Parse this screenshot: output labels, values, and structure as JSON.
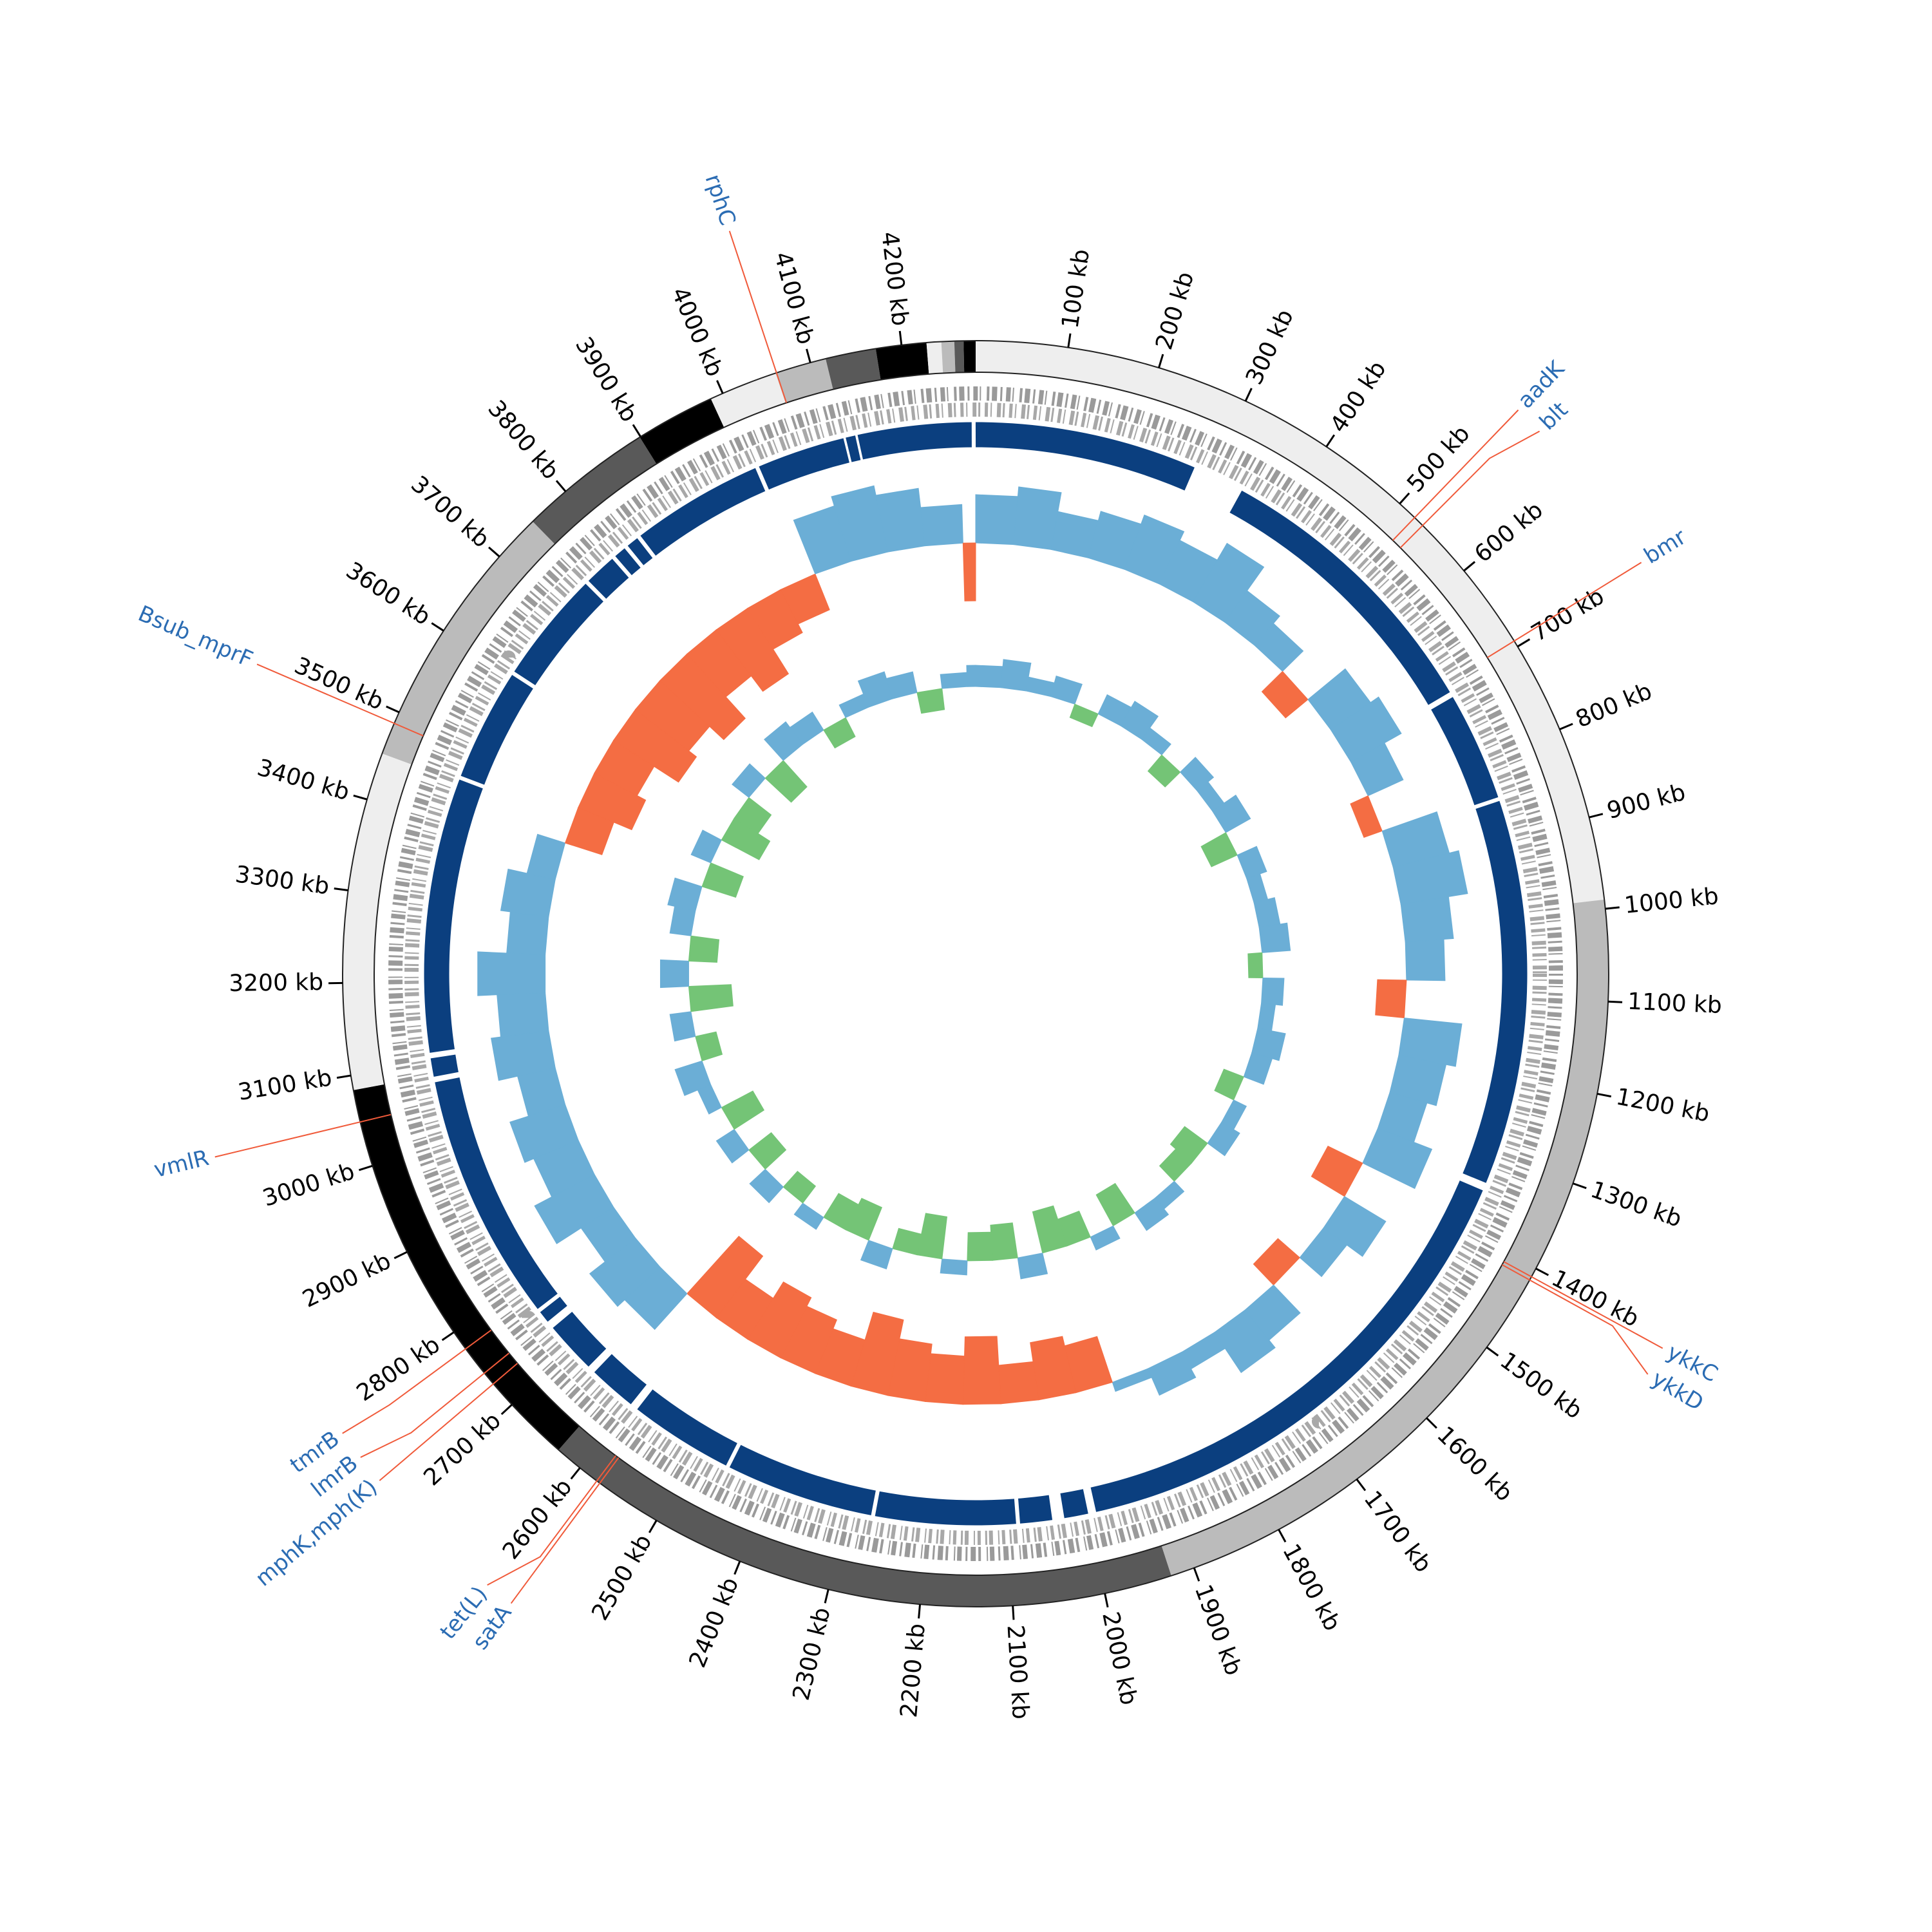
{
  "chart_data": {
    "type": "circular-genome",
    "xlim": [
      0,
      4280
    ],
    "xticks": [
      {
        "value": 100,
        "label": "100 kb"
      },
      {
        "value": 200,
        "label": "200 kb"
      },
      {
        "value": 300,
        "label": "300 kb"
      },
      {
        "value": 400,
        "label": "400 kb"
      },
      {
        "value": 500,
        "label": "500 kb"
      },
      {
        "value": 600,
        "label": "600 kb"
      },
      {
        "value": 700,
        "label": "700 kb"
      },
      {
        "value": 800,
        "label": "800 kb"
      },
      {
        "value": 900,
        "label": "900 kb"
      },
      {
        "value": 1000,
        "label": "1000 kb"
      },
      {
        "value": 1100,
        "label": "1100 kb"
      },
      {
        "value": 1200,
        "label": "1200 kb"
      },
      {
        "value": 1300,
        "label": "1300 kb"
      },
      {
        "value": 1400,
        "label": "1400 kb"
      },
      {
        "value": 1500,
        "label": "1500 kb"
      },
      {
        "value": 1600,
        "label": "1600 kb"
      },
      {
        "value": 1700,
        "label": "1700 kb"
      },
      {
        "value": 1800,
        "label": "1800 kb"
      },
      {
        "value": 1900,
        "label": "1900 kb"
      },
      {
        "value": 2000,
        "label": "2000 kb"
      },
      {
        "value": 2100,
        "label": "2100 kb"
      },
      {
        "value": 2200,
        "label": "2200 kb"
      },
      {
        "value": 2300,
        "label": "2300 kb"
      },
      {
        "value": 2400,
        "label": "2400 kb"
      },
      {
        "value": 2500,
        "label": "2500 kb"
      },
      {
        "value": 2600,
        "label": "2600 kb"
      },
      {
        "value": 2700,
        "label": "2700 kb"
      },
      {
        "value": 2800,
        "label": "2800 kb"
      },
      {
        "value": 2900,
        "label": "2900 kb"
      },
      {
        "value": 3000,
        "label": "3000 kb"
      },
      {
        "value": 3100,
        "label": "3100 kb"
      },
      {
        "value": 3200,
        "label": "3200 kb"
      },
      {
        "value": 3300,
        "label": "3300 kb"
      },
      {
        "value": 3400,
        "label": "3400 kb"
      },
      {
        "value": 3500,
        "label": "3500 kb"
      },
      {
        "value": 3600,
        "label": "3600 kb"
      },
      {
        "value": 3700,
        "label": "3700 kb"
      },
      {
        "value": 3800,
        "label": "3800 kb"
      },
      {
        "value": 3900,
        "label": "3900 kb"
      },
      {
        "value": 4000,
        "label": "4000 kb"
      },
      {
        "value": 4100,
        "label": "4100 kb"
      },
      {
        "value": 4200,
        "label": "4200 kb"
      }
    ],
    "contigs": [
      {
        "start": 0,
        "end": 990,
        "color": "#eeeeee"
      },
      {
        "start": 990,
        "end": 1926,
        "color": "#bbbbbb"
      },
      {
        "start": 1926,
        "end": 2630,
        "color": "#595959"
      },
      {
        "start": 2630,
        "end": 3084,
        "color": "#000000"
      },
      {
        "start": 3084,
        "end": 3452,
        "color": "#eeeeee"
      },
      {
        "start": 3452,
        "end": 3752,
        "color": "#bbbbbb"
      },
      {
        "start": 3752,
        "end": 3899,
        "color": "#595959"
      },
      {
        "start": 3899,
        "end": 3986,
        "color": "#000000"
      },
      {
        "start": 3986,
        "end": 4061,
        "color": "#eeeeee"
      },
      {
        "start": 4061,
        "end": 4117,
        "color": "#bbbbbb"
      },
      {
        "start": 4117,
        "end": 4172,
        "color": "#595959"
      },
      {
        "start": 4172,
        "end": 4227,
        "color": "#000000"
      },
      {
        "start": 4227,
        "end": 4243,
        "color": "#eeeeee"
      },
      {
        "start": 4243,
        "end": 4257,
        "color": "#bbbbbb"
      },
      {
        "start": 4257,
        "end": 4267,
        "color": "#595959"
      },
      {
        "start": 4267,
        "end": 4280,
        "color": "#000000"
      }
    ],
    "coverage": {
      "color": "#0b3f7f",
      "gaps": [
        [
          278,
          343
        ],
        [
          705,
          712
        ],
        [
          848,
          853
        ],
        [
          1335,
          1345
        ],
        [
          1990,
          2000
        ],
        [
          2030,
          2045
        ],
        [
          2085,
          2090
        ],
        [
          2265,
          2270
        ],
        [
          2455,
          2460
        ],
        [
          2590,
          2600
        ],
        [
          2660,
          2670
        ],
        [
          2735,
          2745
        ],
        [
          2760,
          2765
        ],
        [
          3075,
          3082
        ],
        [
          3105,
          3112
        ],
        [
          3455,
          3460
        ],
        [
          3600,
          3605
        ],
        [
          3745,
          3750
        ],
        [
          3790,
          3795
        ],
        [
          3810,
          3815
        ],
        [
          3830,
          3835
        ],
        [
          4000,
          4005
        ],
        [
          4115,
          4118
        ],
        [
          4130,
          4133
        ],
        [
          4275,
          4280
        ]
      ]
    },
    "genes": {
      "color": "#2b6cb3",
      "line_color": "#f05a3a",
      "items": [
        {
          "label": "aadK",
          "position": 522
        },
        {
          "label": "blt",
          "position": 534
        },
        {
          "label": "bmr",
          "position": 693
        },
        {
          "label": "ykkC",
          "position": 1410
        },
        {
          "label": "ykkD",
          "position": 1414
        },
        {
          "label": "satA",
          "position": 2573
        },
        {
          "label": "tet(L)",
          "position": 2577
        },
        {
          "label": "mphK,mph(K)",
          "position": 2730
        },
        {
          "label": "lmrB",
          "position": 2745
        },
        {
          "label": "tmrB",
          "position": 2778
        },
        {
          "label": "vmlR",
          "position": 3049
        },
        {
          "label": "Bsub_mprF",
          "position": 3487
        },
        {
          "label": "rphC",
          "position": 4062
        }
      ]
    },
    "x": [
      0,
      60,
      120,
      180,
      240,
      300,
      360,
      420,
      480,
      540,
      600,
      660,
      720,
      780,
      840,
      900,
      960,
      1020,
      1080,
      1140,
      1200,
      1260,
      1320,
      1380,
      1440,
      1500,
      1560,
      1620,
      1680,
      1740,
      1800,
      1860,
      1920,
      1980,
      2040,
      2100,
      2160,
      2220,
      2280,
      2340,
      2400,
      2460,
      2520,
      2580,
      2640,
      2700,
      2760,
      2820,
      2880,
      2940,
      3000,
      3060,
      3120,
      3180,
      3240,
      3300,
      3360,
      3420,
      3480,
      3540,
      3600,
      3660,
      3720,
      3780,
      3840,
      3900,
      3960,
      4020,
      4080,
      4140,
      4200,
      4260
    ],
    "gc_content": {
      "color": "#6baed6",
      "negative_color": "#f46d43",
      "ylim": [
        -1,
        1
      ],
      "values": [
        0.5,
        0.6,
        0.4,
        0.5,
        0.6,
        0.5,
        0.7,
        0.4,
        0.3,
        -0.3,
        0.5,
        0.6,
        0.4,
        -0.2,
        0.6,
        0.7,
        0.5,
        0.4,
        -0.3,
        0.6,
        0.5,
        0.4,
        0.6,
        -0.4,
        0.5,
        0.3,
        -0.3,
        0.4,
        0.5,
        0.2,
        0.3,
        0.1,
        -0.5,
        -0.6,
        -0.4,
        -0.7,
        -0.5,
        -0.6,
        -0.8,
        -0.5,
        -0.6,
        -0.7,
        -0.5,
        -0.8,
        0.5,
        0.6,
        0.4,
        0.7,
        0.5,
        0.6,
        0.4,
        0.6,
        0.5,
        0.7,
        0.4,
        0.5,
        0.3,
        -0.4,
        -0.6,
        -0.5,
        -0.8,
        -0.7,
        -0.9,
        -0.6,
        -0.8,
        -0.5,
        -0.4,
        0.6,
        0.7,
        0.6,
        0.4,
        -0.6
      ]
    },
    "gc_skew": {
      "color": "#6baed6",
      "negative_color": "#74c476",
      "ylim": [
        -1,
        1
      ],
      "values": [
        0.3,
        0.4,
        0.2,
        0.3,
        -0.2,
        0.3,
        0.4,
        0.2,
        -0.3,
        0.3,
        0.2,
        0.4,
        -0.4,
        0.3,
        0.2,
        0.3,
        0.4,
        -0.2,
        0.3,
        0.2,
        0.4,
        0.3,
        -0.3,
        0.2,
        0.3,
        -0.4,
        -0.3,
        0.2,
        0.3,
        -0.5,
        0.2,
        -0.4,
        -0.6,
        0.3,
        -0.5,
        -0.4,
        0.2,
        -0.6,
        -0.3,
        0.3,
        -0.5,
        -0.4,
        0.2,
        -0.3,
        0.3,
        -0.4,
        0.3,
        -0.5,
        0.2,
        0.4,
        -0.3,
        0.3,
        -0.6,
        0.4,
        -0.4,
        0.3,
        0.4,
        -0.5,
        0.3,
        -0.6,
        -0.4,
        0.3,
        -0.5,
        0.4,
        0.3,
        -0.3,
        0.2,
        0.4,
        0.3,
        -0.3,
        0.2,
        0.3
      ]
    }
  }
}
